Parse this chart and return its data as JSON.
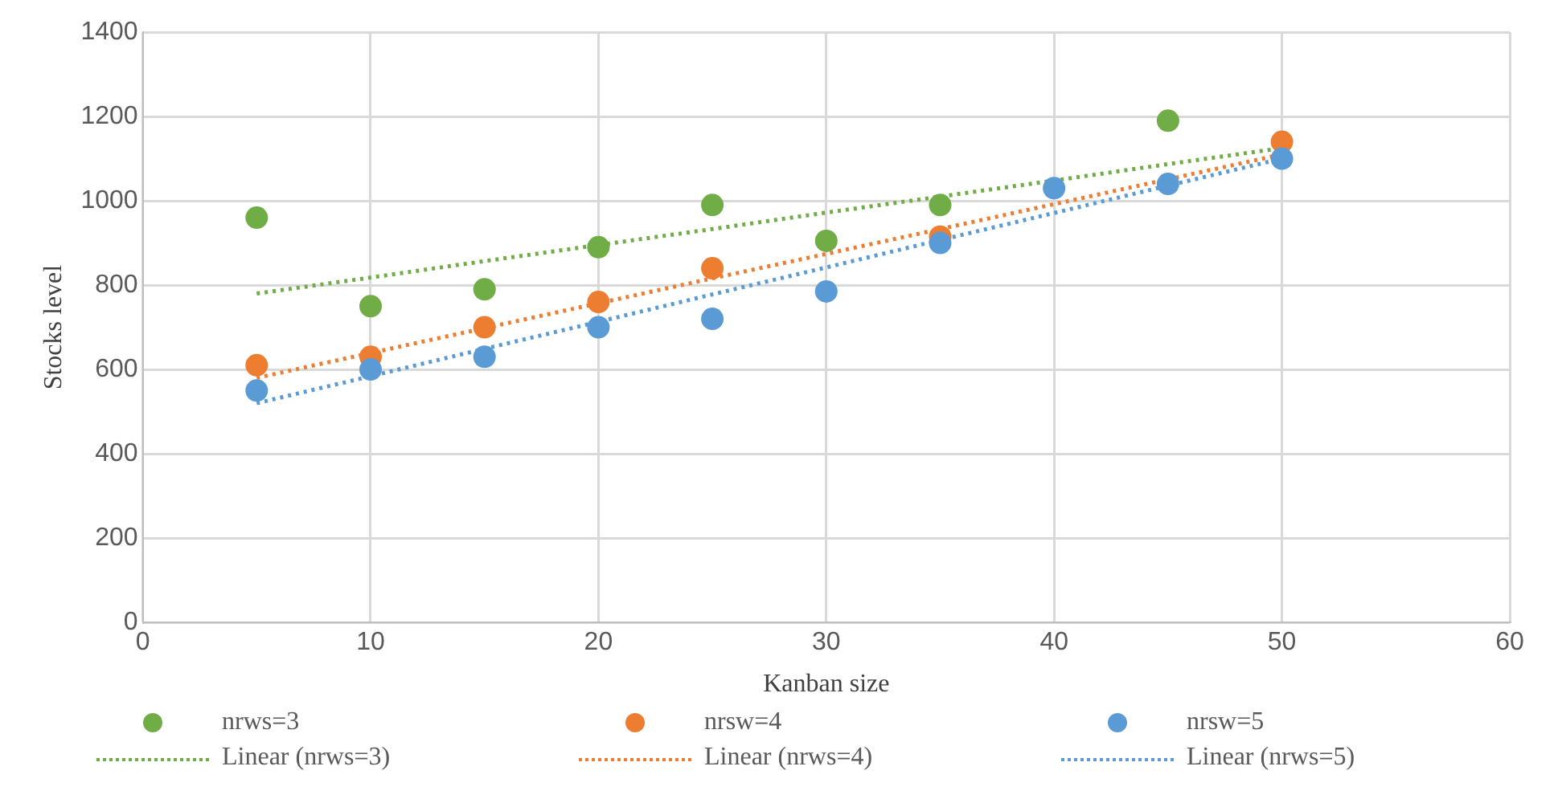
{
  "chart_data": {
    "type": "scatter",
    "xlabel": "Kanban size",
    "ylabel": "Stocks level",
    "xlim": [
      0,
      60
    ],
    "xticks": [
      0,
      10,
      20,
      30,
      40,
      50,
      60
    ],
    "ylim": [
      0,
      1400
    ],
    "yticks": [
      0,
      200,
      400,
      600,
      800,
      1000,
      1200,
      1400
    ],
    "grid": true,
    "legend": "bottom",
    "marker": "circle",
    "x": [
      5,
      10,
      15,
      20,
      25,
      30,
      35,
      40,
      45,
      50
    ],
    "series": [
      {
        "name": "nrws=3",
        "color": "#70ad47",
        "values": [
          960,
          750,
          790,
          890,
          990,
          905,
          990,
          null,
          1190,
          null
        ]
      },
      {
        "name": "nrsw=4",
        "color": "#ed7d31",
        "values": [
          610,
          630,
          700,
          760,
          840,
          null,
          915,
          null,
          null,
          1140
        ]
      },
      {
        "name": "nrsw=5",
        "color": "#5b9bd5",
        "values": [
          550,
          600,
          630,
          700,
          720,
          785,
          900,
          1030,
          1040,
          1100
        ]
      },
      {
        "name": "Linear (nrws=3)",
        "type": "line",
        "line_style": "dotted",
        "marker": "none",
        "color": "#70ad47",
        "values": [
          780,
          818,
          857,
          895,
          933,
          972,
          1010,
          1048,
          1087,
          1125
        ]
      },
      {
        "name": "Linear (nrws=4)",
        "type": "line",
        "line_style": "dotted",
        "marker": "none",
        "color": "#ed7d31",
        "values": [
          580,
          639,
          698,
          757,
          816,
          874,
          933,
          992,
          1051,
          1110
        ]
      },
      {
        "name": "Linear (nrws=5)",
        "type": "line",
        "line_style": "dotted",
        "marker": "none",
        "color": "#5b9bd5",
        "values": [
          520,
          584,
          649,
          713,
          778,
          842,
          907,
          971,
          1036,
          1100
        ]
      }
    ]
  }
}
